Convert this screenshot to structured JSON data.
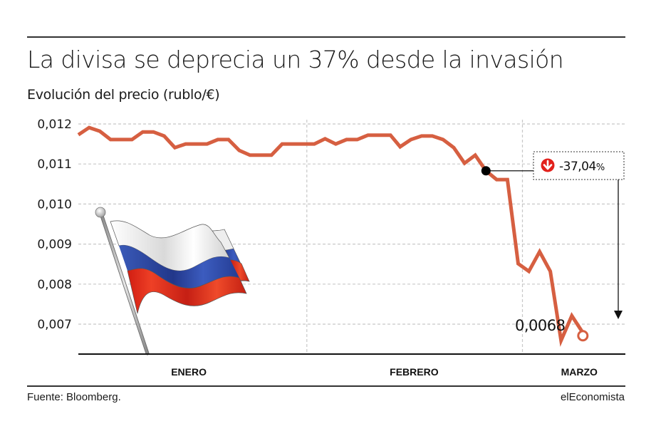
{
  "header": {
    "title": "La divisa se deprecia un 37% desde la invasión",
    "subtitle": "Evolución del precio (rublo/€)"
  },
  "footer": {
    "source": "Fuente: Bloomberg.",
    "brand": "elEconomista"
  },
  "colors": {
    "line": "#d65f41",
    "grid": "#c8c8c8",
    "axis": "#111111",
    "callout_icon": "#e2211c",
    "flag_white": "#f4f4f4",
    "flag_blue": "#2d4aa6",
    "flag_red": "#e2321f"
  },
  "icons": {
    "callout": "down-arrow-circle-icon",
    "flag": "russian-flag-icon"
  },
  "chart_data": {
    "type": "line",
    "title": "La divisa se deprecia un 37% desde la invasión",
    "subtitle": "Evolución del precio (rublo/€)",
    "xlabel": "",
    "ylabel": "rublo/€",
    "ylim": [
      0.0063,
      0.0122
    ],
    "yticks": [
      0.012,
      0.011,
      0.01,
      0.009,
      0.008,
      0.007
    ],
    "ytick_labels": [
      "0,012",
      "0,011",
      "0,010",
      "0,009",
      "0,008",
      "0,007"
    ],
    "x_period_labels": [
      "ENERO",
      "FEBRERO",
      "MARZO"
    ],
    "x_range": [
      0,
      50
    ],
    "month_separators": [
      21.3,
      41.4
    ],
    "x_label_positions": [
      10.3,
      31.3,
      46.7
    ],
    "grid": true,
    "legend": "none",
    "series": [
      {
        "name": "rublo/€",
        "x": [
          0,
          1,
          2,
          3,
          5,
          6,
          7,
          8,
          9,
          10,
          12,
          13,
          14,
          15,
          16,
          18,
          19,
          20,
          22,
          23,
          24,
          25,
          26,
          27,
          28,
          29.1,
          30,
          31,
          32,
          33,
          34,
          35,
          36,
          37,
          38,
          39,
          40,
          41,
          42,
          43,
          44,
          45,
          46,
          47,
          48.5
        ],
        "values": [
          0.01173,
          0.01191,
          0.01182,
          0.01161,
          0.01161,
          0.0118,
          0.0118,
          0.0117,
          0.01141,
          0.0115,
          0.0115,
          0.01161,
          0.01161,
          0.01134,
          0.01122,
          0.01122,
          0.0115,
          0.0115,
          0.0115,
          0.01163,
          0.0115,
          0.01161,
          0.01161,
          0.01172,
          0.01172,
          0.01172,
          0.01143,
          0.01161,
          0.0117,
          0.0117,
          0.01161,
          0.01141,
          0.01102,
          0.01122,
          0.01083,
          0.01061,
          0.01061,
          0.00851,
          0.00832,
          0.00881,
          0.00832,
          0.00659,
          0.00721,
          0.0068,
          0.0068
        ]
      }
    ],
    "annotations": {
      "start_marker_value": 0.01083,
      "change_label": "-37,04",
      "change_unit": "%",
      "end_label": "0,0068",
      "end_value": 0.0068
    }
  }
}
